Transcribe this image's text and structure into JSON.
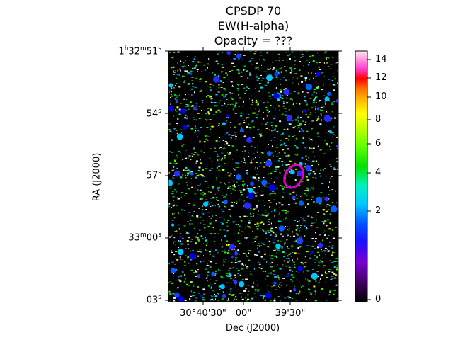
{
  "chart_data": {
    "type": "heatmap",
    "title": [
      "CPSDP 70",
      "EW(H-alpha)",
      "Opacity = ???"
    ],
    "xlabel": "Dec (J2000)",
    "ylabel": "RA (J2000)",
    "x_ticks": [
      "30°40'30\"",
      "00\"",
      "39'30\""
    ],
    "y_ticks": [
      {
        "main": "1",
        "h": "h",
        "m1": "32",
        "m": "m",
        "s1": "51",
        "s": "s"
      },
      {
        "main": "54",
        "s": "s"
      },
      {
        "main": "57",
        "s": "s"
      },
      {
        "main": "33",
        "m": "m",
        "s1": "00",
        "s": "s"
      },
      {
        "main": "03",
        "s": "s"
      }
    ],
    "colorbar": {
      "colormap": "gist_ncar",
      "range": [
        0,
        14.7
      ],
      "scale": "nonlinear (asinh-like stretch)",
      "ticks": [
        "0",
        "2",
        "4",
        "6",
        "8",
        "10",
        "12",
        "14"
      ]
    },
    "annotation": {
      "shape": "ellipse",
      "color": "#e000c8"
    },
    "background": "#000000"
  }
}
